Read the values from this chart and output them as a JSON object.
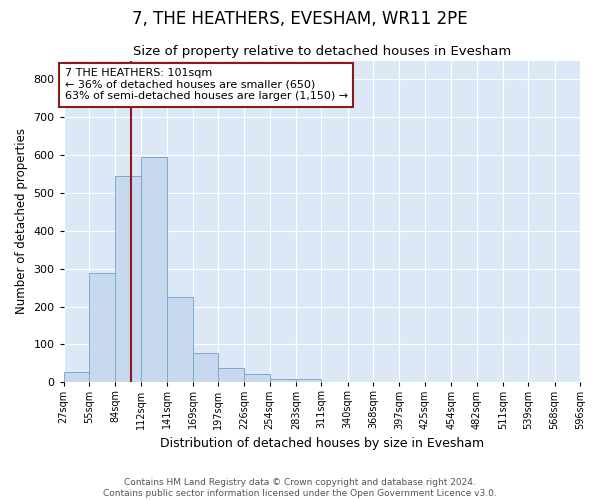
{
  "title": "7, THE HEATHERS, EVESHAM, WR11 2PE",
  "subtitle": "Size of property relative to detached houses in Evesham",
  "xlabel": "Distribution of detached houses by size in Evesham",
  "ylabel": "Number of detached properties",
  "bar_color": "#c8d8ee",
  "bar_edge_color": "#7aaad0",
  "background_color": "#dce8f5",
  "grid_color": "#ffffff",
  "fig_bg_color": "#ffffff",
  "red_color": "#8b1a1a",
  "red_line_x": 101,
  "annotation_text": "7 THE HEATHERS: 101sqm\n← 36% of detached houses are smaller (650)\n63% of semi-detached houses are larger (1,150) →",
  "bin_edges": [
    27,
    55,
    84,
    112,
    141,
    169,
    197,
    226,
    254,
    283,
    311,
    340,
    368,
    397,
    425,
    454,
    482,
    511,
    539,
    568,
    596
  ],
  "bin_counts": [
    28,
    290,
    545,
    595,
    225,
    78,
    37,
    22,
    10,
    8,
    0,
    0,
    0,
    0,
    0,
    0,
    0,
    0,
    0,
    0
  ],
  "ylim": [
    0,
    850
  ],
  "yticks": [
    0,
    100,
    200,
    300,
    400,
    500,
    600,
    700,
    800
  ],
  "footer_line1": "Contains HM Land Registry data © Crown copyright and database right 2024.",
  "footer_line2": "Contains public sector information licensed under the Open Government Licence v3.0."
}
